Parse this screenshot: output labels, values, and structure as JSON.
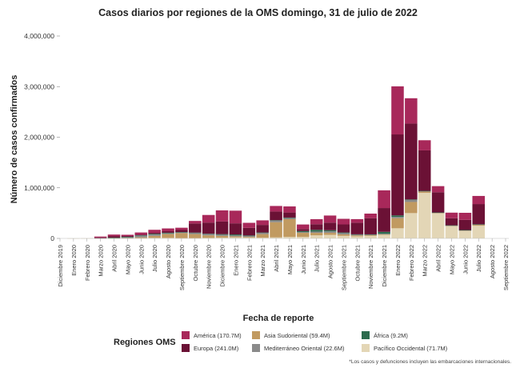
{
  "title": "Casos diarios por regiones de la OMS domingo, 31 de julio de 2022",
  "chart_data": {
    "type": "bar",
    "stacked": true,
    "ylabel": "Número de casos confirmados",
    "xlabel": "Fecha de reporte",
    "ylim": [
      0,
      4000000
    ],
    "yticks": [
      0,
      1000000,
      2000000,
      3000000,
      4000000
    ],
    "ytick_labels": [
      "0",
      "1,000,000",
      "2,000,000",
      "3,000,000",
      "4,000,000"
    ],
    "xtick_labels": [
      "Diciembre 2019",
      "Enero 2020",
      "Febrero 2020",
      "Marzo 2020",
      "Abril 2020",
      "Mayo 2020",
      "Junio 2020",
      "Julio 2020",
      "Agosto 2020",
      "Septiembre 2020",
      "Octubre 2020",
      "Noviembre 2020",
      "Diciembre 2020",
      "Enero 2021",
      "Febrero 2021",
      "Marzo 2021",
      "Abril 2021",
      "Mayo 2021",
      "Junio 2021",
      "Julio 2021",
      "Agosto 2021",
      "Septiembre 2021",
      "Octubre 2021",
      "Noviembre 2021",
      "Diciembre 2021",
      "Enero 2022",
      "Febrero 2022",
      "Marzo 2022",
      "Abril 2022",
      "Mayo 2022",
      "Junio 2022",
      "Julio 2022",
      "Agosto 2022",
      "Septiembre 2022"
    ],
    "series_order": [
      "Pacífico Occidental",
      "Asia Sudoriental",
      "Mediterráneo Oriental",
      "África",
      "Europa",
      "América"
    ],
    "series": [
      {
        "name": "América",
        "color": "#a8285a",
        "values": [
          0,
          0,
          0,
          20000,
          30000,
          25000,
          45000,
          60000,
          55000,
          45000,
          50000,
          150000,
          220000,
          250000,
          100000,
          90000,
          110000,
          120000,
          90000,
          100000,
          140000,
          110000,
          70000,
          90000,
          350000,
          950000,
          500000,
          200000,
          120000,
          110000,
          140000,
          160000,
          0,
          0
        ]
      },
      {
        "name": "Europa",
        "color": "#6b1135",
        "values": [
          0,
          0,
          0,
          10000,
          30000,
          15000,
          10000,
          20000,
          30000,
          40000,
          180000,
          220000,
          250000,
          220000,
          150000,
          150000,
          170000,
          100000,
          40000,
          110000,
          150000,
          160000,
          230000,
          320000,
          470000,
          1600000,
          1500000,
          800000,
          400000,
          140000,
          200000,
          400000,
          0,
          0
        ]
      },
      {
        "name": "Asia Sudoriental",
        "color": "#c19a61",
        "values": [
          0,
          0,
          0,
          0,
          3000,
          7000,
          17000,
          40000,
          75000,
          100000,
          80000,
          50000,
          35000,
          20000,
          15000,
          70000,
          300000,
          350000,
          80000,
          50000,
          40000,
          30000,
          20000,
          15000,
          10000,
          200000,
          220000,
          25000,
          5000,
          3000,
          8000,
          20000,
          0,
          0
        ]
      },
      {
        "name": "Mediterráneo Oriental",
        "color": "#8a8a8a",
        "values": [
          0,
          0,
          0,
          5000,
          10000,
          20000,
          30000,
          25000,
          15000,
          15000,
          25000,
          25000,
          22000,
          18000,
          18000,
          25000,
          35000,
          25000,
          15000,
          25000,
          30000,
          25000,
          15000,
          10000,
          10000,
          25000,
          40000,
          10000,
          5000,
          3000,
          3000,
          5000,
          0,
          0
        ]
      },
      {
        "name": "África",
        "color": "#2d6b4e",
        "values": [
          0,
          0,
          0,
          0,
          1000,
          3000,
          10000,
          15000,
          12000,
          6000,
          5000,
          8000,
          12000,
          20000,
          10000,
          7000,
          6000,
          7000,
          20000,
          35000,
          22000,
          12000,
          6000,
          5000,
          40000,
          30000,
          10000,
          5000,
          3000,
          3000,
          5000,
          4000,
          0,
          0
        ]
      },
      {
        "name": "Pacífico Occidental",
        "color": "#e3d6b6",
        "values": [
          0,
          2000,
          3000,
          2000,
          2000,
          2000,
          5000,
          10000,
          10000,
          5000,
          5000,
          10000,
          15000,
          20000,
          15000,
          15000,
          20000,
          30000,
          30000,
          60000,
          70000,
          50000,
          40000,
          50000,
          70000,
          200000,
          500000,
          900000,
          500000,
          250000,
          150000,
          250000,
          0,
          0
        ]
      }
    ]
  },
  "legend": {
    "title": "Regiones OMS",
    "items": [
      {
        "label": "América (170.7M)",
        "color": "#a8285a"
      },
      {
        "label": "Asia Sudoriental (59.4M)",
        "color": "#c19a61"
      },
      {
        "label": "África (9.2M)",
        "color": "#2d6b4e"
      },
      {
        "label": "Europa (241.0M)",
        "color": "#6b1135"
      },
      {
        "label": "Mediterráneo Oriental (22.6M)",
        "color": "#8a8a8a"
      },
      {
        "label": "Pacífico Occidental (71.7M)",
        "color": "#e3d6b6"
      }
    ]
  },
  "footnote": "*Los casos y defunciones incluyen las embarcaciones internacionales."
}
